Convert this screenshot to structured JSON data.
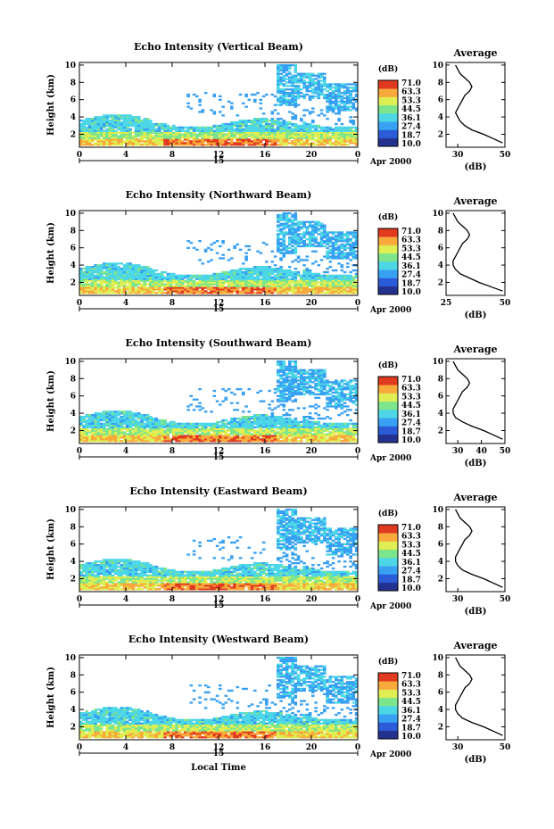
{
  "figure": {
    "xlabel": "Local Time",
    "date_label": "Apr 2000",
    "day_label": "15",
    "colorbar_unit": "(dB)",
    "colorbar_ticks": [
      "71.0",
      "63.3",
      "53.3",
      "44.5",
      "36.1",
      "27.4",
      "18.7",
      "10.0"
    ],
    "colormap": [
      "#22308f",
      "#2b5bd6",
      "#38a0f2",
      "#4cd6e6",
      "#7de58c",
      "#dfee52",
      "#f8a93b",
      "#e03a1f"
    ],
    "avg_title": "Average",
    "avg_xlabel": "(dB)"
  },
  "chart_data": [
    {
      "type": "heatmap",
      "title": "Echo Intensity (Vertical Beam)",
      "ylabel": "Height (km)",
      "x_ticks": [
        "0",
        "4",
        "8",
        "12",
        "16",
        "20",
        "0"
      ],
      "y_ticks": [
        "10",
        "8",
        "6",
        "4",
        "2"
      ],
      "xlim": [
        0,
        24
      ],
      "ylim": [
        0.5,
        10.3
      ],
      "colorbar_range": [
        10.0,
        71.0
      ],
      "average_profile": {
        "title": "Average",
        "xlabel": "(dB)",
        "x_ticks": [
          "30",
          "50"
        ],
        "xlim": [
          25,
          50
        ],
        "ylim": [
          0.5,
          10.3
        ],
        "heights": [
          1.0,
          1.5,
          2.0,
          2.5,
          3.0,
          3.5,
          4.0,
          4.5,
          5.0,
          5.5,
          6.0,
          6.5,
          7.0,
          7.5,
          8.0,
          8.5,
          9.0,
          9.5,
          10.0
        ],
        "values": [
          49,
          45,
          41,
          36,
          33,
          31,
          30,
          29,
          30,
          31,
          32,
          33,
          35,
          36,
          35,
          33,
          31,
          30,
          29
        ]
      }
    },
    {
      "type": "heatmap",
      "title": "Echo Intensity (Northward Beam)",
      "ylabel": "Height (km)",
      "x_ticks": [
        "0",
        "4",
        "8",
        "12",
        "16",
        "20",
        "0"
      ],
      "y_ticks": [
        "10",
        "8",
        "6",
        "4",
        "2"
      ],
      "xlim": [
        0,
        24
      ],
      "ylim": [
        0.5,
        10.3
      ],
      "colorbar_range": [
        10.0,
        71.0
      ],
      "average_profile": {
        "title": "Average",
        "xlabel": "(dB)",
        "x_ticks": [
          "25",
          "50"
        ],
        "xlim": [
          25,
          50
        ],
        "ylim": [
          0.5,
          10.3
        ],
        "heights": [
          1.0,
          1.5,
          2.0,
          2.5,
          3.0,
          3.5,
          4.0,
          4.5,
          5.0,
          5.5,
          6.0,
          6.5,
          7.0,
          7.5,
          8.0,
          8.5,
          9.0,
          9.5,
          10.0
        ],
        "values": [
          49,
          44,
          39,
          35,
          31,
          29,
          28,
          28,
          29,
          30,
          31,
          32,
          34,
          35,
          34,
          32,
          30,
          29,
          28
        ]
      }
    },
    {
      "type": "heatmap",
      "title": "Echo Intensity (Southward Beam)",
      "ylabel": "Height (km)",
      "x_ticks": [
        "0",
        "4",
        "8",
        "12",
        "16",
        "20",
        "0"
      ],
      "y_ticks": [
        "10",
        "8",
        "6",
        "4",
        "2"
      ],
      "xlim": [
        0,
        24
      ],
      "ylim": [
        0.5,
        10.3
      ],
      "colorbar_range": [
        10.0,
        71.0
      ],
      "average_profile": {
        "title": "Average",
        "xlabel": "(dB)",
        "x_ticks": [
          "30",
          "40",
          "50"
        ],
        "xlim": [
          25,
          50
        ],
        "ylim": [
          0.5,
          10.3
        ],
        "heights": [
          1.0,
          1.5,
          2.0,
          2.5,
          3.0,
          3.5,
          4.0,
          4.5,
          5.0,
          5.5,
          6.0,
          6.5,
          7.0,
          7.5,
          8.0,
          8.5,
          9.0,
          9.5,
          10.0
        ],
        "values": [
          49,
          45,
          41,
          36,
          32,
          29,
          28,
          28,
          29,
          30,
          31,
          32,
          34,
          35,
          34,
          32,
          30,
          29,
          28
        ]
      }
    },
    {
      "type": "heatmap",
      "title": "Echo Intensity (Eastward Beam)",
      "ylabel": "Height (km)",
      "x_ticks": [
        "0",
        "4",
        "8",
        "12",
        "16",
        "20",
        "0"
      ],
      "y_ticks": [
        "10",
        "8",
        "6",
        "4",
        "2"
      ],
      "xlim": [
        0,
        24
      ],
      "ylim": [
        0.5,
        10.3
      ],
      "colorbar_range": [
        10.0,
        71.0
      ],
      "average_profile": {
        "title": "Average",
        "xlabel": "(dB)",
        "x_ticks": [
          "30",
          "50"
        ],
        "xlim": [
          25,
          50
        ],
        "ylim": [
          0.5,
          10.3
        ],
        "heights": [
          1.0,
          1.5,
          2.0,
          2.5,
          3.0,
          3.5,
          4.0,
          4.5,
          5.0,
          5.5,
          6.0,
          6.5,
          7.0,
          7.5,
          8.0,
          8.5,
          9.0,
          9.5,
          10.0
        ],
        "values": [
          49,
          45,
          41,
          36,
          32,
          30,
          29,
          29,
          30,
          31,
          32,
          33,
          35,
          36,
          35,
          33,
          31,
          30,
          29
        ]
      }
    },
    {
      "type": "heatmap",
      "title": "Echo Intensity (Westward Beam)",
      "ylabel": "Height (km)",
      "x_ticks": [
        "0",
        "4",
        "8",
        "12",
        "16",
        "20",
        "0"
      ],
      "y_ticks": [
        "10",
        "8",
        "6",
        "4",
        "2"
      ],
      "xlim": [
        0,
        24
      ],
      "ylim": [
        0.5,
        10.3
      ],
      "colorbar_range": [
        10.0,
        71.0
      ],
      "average_profile": {
        "title": "Average",
        "xlabel": "(dB)",
        "x_ticks": [
          "30",
          "50"
        ],
        "xlim": [
          25,
          50
        ],
        "ylim": [
          0.5,
          10.3
        ],
        "heights": [
          1.0,
          1.5,
          2.0,
          2.5,
          3.0,
          3.5,
          4.0,
          4.5,
          5.0,
          5.5,
          6.0,
          6.5,
          7.0,
          7.5,
          8.0,
          8.5,
          9.0,
          9.5,
          10.0
        ],
        "values": [
          49,
          45,
          41,
          36,
          32,
          30,
          29,
          29,
          30,
          31,
          32,
          33,
          35,
          36,
          35,
          33,
          31,
          30,
          29
        ]
      }
    }
  ]
}
